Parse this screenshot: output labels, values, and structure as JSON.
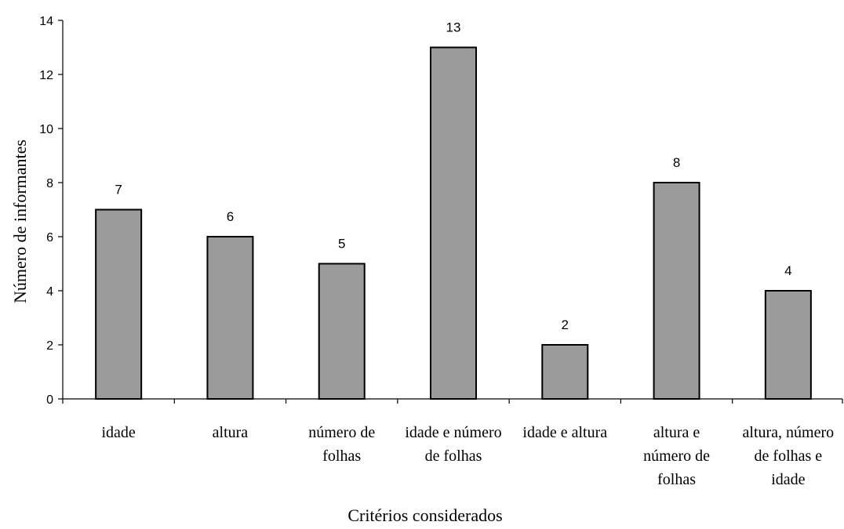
{
  "chart_data": {
    "type": "bar",
    "categories": [
      [
        "idade"
      ],
      [
        "altura"
      ],
      [
        "número de",
        "folhas"
      ],
      [
        "idade e número",
        "de folhas"
      ],
      [
        "idade e altura"
      ],
      [
        "altura e",
        "número de",
        "folhas"
      ],
      [
        "altura, número",
        "de folhas e",
        "idade"
      ]
    ],
    "values": [
      7,
      6,
      5,
      13,
      2,
      8,
      4
    ],
    "data_labels": [
      "7",
      "6",
      "5",
      "13",
      "2",
      "8",
      "4"
    ],
    "xlabel": "Critérios considerados",
    "ylabel": "Número de informantes",
    "ylim": [
      0,
      14
    ],
    "yticks": [
      0,
      2,
      4,
      6,
      8,
      10,
      12,
      14
    ],
    "bar_color": "#9b9b9b",
    "grid": false,
    "legend": "none"
  }
}
